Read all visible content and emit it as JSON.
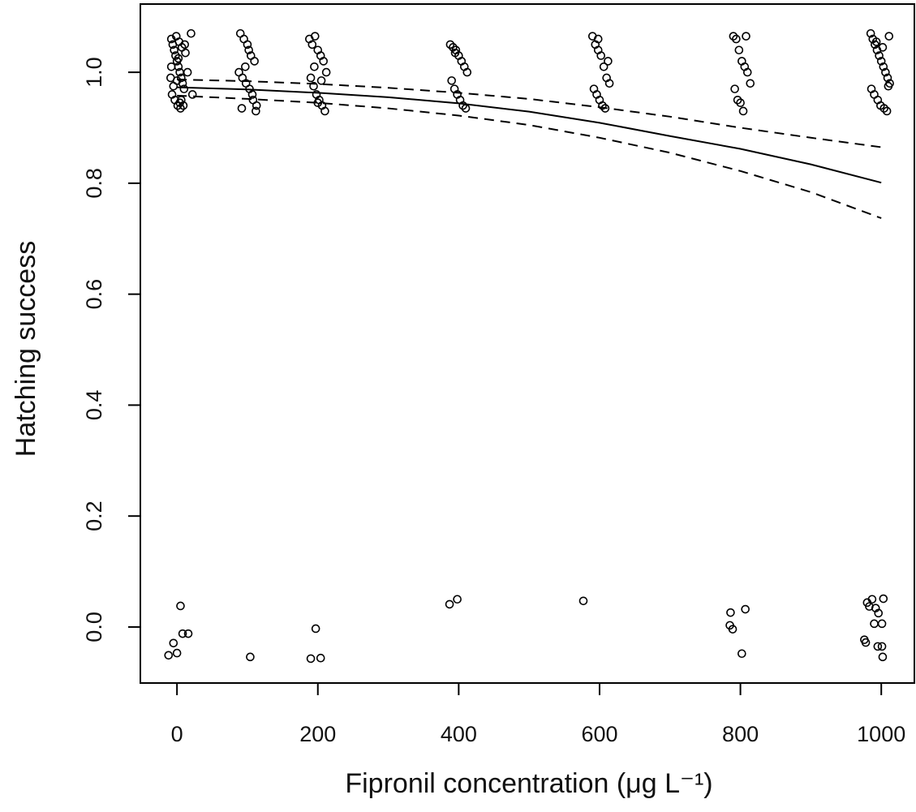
{
  "chart_data": {
    "type": "scatter",
    "xlabel": "Fipronil concentration (μg L⁻¹)",
    "ylabel": "Hatching success",
    "xlim": [
      -52,
      1047
    ],
    "ylim": [
      -0.101,
      1.123
    ],
    "xticks": [
      0,
      200,
      400,
      600,
      800,
      1000
    ],
    "yticks": [
      {
        "value": 0,
        "label": "0.0"
      },
      0.2,
      0.4,
      0.6,
      0.8,
      {
        "value": 1,
        "label": "1.0"
      }
    ],
    "color": "#000000",
    "series": [
      {
        "mark": "circle",
        "x": [
          -8,
          -6,
          -4,
          -2,
          0,
          2,
          4,
          6,
          8,
          10,
          -7,
          -3,
          1,
          5,
          9,
          -9,
          -1,
          3,
          7,
          12,
          15,
          20,
          22,
          -5,
          0,
          4,
          -8,
          2,
          6,
          11
        ],
        "values": [
          1.06,
          1.05,
          1.04,
          1.03,
          1.02,
          1.01,
          1.0,
          0.99,
          0.98,
          0.97,
          0.96,
          0.95,
          0.94,
          0.935,
          0.94,
          0.99,
          1.065,
          1.055,
          1.045,
          1.035,
          1.0,
          1.07,
          0.96,
          0.975,
          0.985,
          0.945,
          1.01,
          1.025,
          0.95,
          1.05
        ]
      },
      {
        "mark": "circle",
        "x": [
          90,
          95,
          100,
          105,
          110,
          88,
          93,
          98,
          103,
          108,
          113,
          92,
          97,
          102,
          107,
          112
        ],
        "values": [
          1.07,
          1.06,
          1.05,
          1.03,
          1.02,
          1.0,
          0.99,
          0.98,
          0.97,
          0.95,
          0.94,
          0.935,
          1.01,
          1.04,
          0.96,
          0.93
        ]
      },
      {
        "mark": "circle",
        "x": [
          188,
          192,
          196,
          200,
          204,
          208,
          212,
          190,
          194,
          198,
          202,
          206,
          210,
          195,
          205,
          200
        ],
        "values": [
          1.06,
          1.05,
          1.065,
          1.04,
          1.03,
          1.02,
          1.0,
          0.99,
          0.975,
          0.96,
          0.95,
          0.94,
          0.93,
          1.01,
          0.985,
          0.945
        ]
      },
      {
        "mark": "circle",
        "x": [
          388,
          392,
          396,
          400,
          404,
          408,
          412,
          390,
          394,
          398,
          402,
          406,
          410,
          395
        ],
        "values": [
          1.05,
          1.045,
          1.04,
          1.03,
          1.02,
          1.01,
          1.0,
          0.985,
          0.97,
          0.96,
          0.95,
          0.94,
          0.935,
          1.035
        ]
      },
      {
        "mark": "circle",
        "x": [
          590,
          594,
          598,
          602,
          606,
          610,
          614,
          592,
          596,
          600,
          604,
          608,
          612,
          598
        ],
        "values": [
          1.065,
          1.05,
          1.04,
          1.03,
          1.01,
          0.99,
          0.98,
          0.97,
          0.96,
          0.95,
          0.94,
          0.935,
          1.02,
          1.06
        ]
      },
      {
        "mark": "circle",
        "x": [
          790,
          794,
          798,
          802,
          806,
          810,
          814,
          792,
          796,
          800,
          804,
          808
        ],
        "values": [
          1.065,
          1.06,
          1.04,
          1.02,
          1.01,
          1.0,
          0.98,
          0.97,
          0.95,
          0.945,
          0.93,
          1.065
        ]
      },
      {
        "mark": "circle",
        "x": [
          985,
          988,
          991,
          994,
          997,
          1000,
          1003,
          1006,
          1009,
          1012,
          986,
          990,
          995,
          999,
          1004,
          1008,
          1011,
          993,
          1002,
          1010
        ],
        "values": [
          1.07,
          1.06,
          1.05,
          1.04,
          1.03,
          1.02,
          1.01,
          1.0,
          0.99,
          0.98,
          0.97,
          0.96,
          0.95,
          0.94,
          0.935,
          0.93,
          1.065,
          1.055,
          1.045,
          0.975
        ]
      },
      {
        "mark": "circle",
        "x": [
          -12,
          0,
          5,
          -5,
          8,
          16,
          104,
          190,
          204,
          197,
          387,
          398,
          577,
          785,
          789,
          786,
          807,
          802,
          978,
          976,
          980,
          987,
          992,
          996,
          1001,
          990,
          1003,
          995,
          1001,
          1002,
          983
        ],
        "values": [
          -0.051,
          -0.047,
          0.038,
          -0.029,
          -0.012,
          -0.012,
          -0.054,
          -0.057,
          -0.056,
          -0.003,
          0.041,
          0.05,
          0.047,
          0.003,
          -0.004,
          0.026,
          0.032,
          -0.048,
          -0.028,
          -0.023,
          0.044,
          0.05,
          0.034,
          0.025,
          0.006,
          0.006,
          0.051,
          -0.035,
          -0.035,
          -0.054,
          0.037
        ]
      },
      {
        "mark": "solid",
        "x": [
          0,
          100,
          200,
          300,
          400,
          500,
          600,
          700,
          800,
          900,
          1000
        ],
        "values": [
          0.973,
          0.969,
          0.963,
          0.955,
          0.944,
          0.929,
          0.909,
          0.885,
          0.862,
          0.834,
          0.801
        ]
      },
      {
        "mark": "dashed",
        "x": [
          0,
          100,
          200,
          300,
          400,
          500,
          600,
          700,
          800,
          900,
          1000
        ],
        "values": [
          0.987,
          0.984,
          0.979,
          0.972,
          0.963,
          0.952,
          0.937,
          0.92,
          0.9,
          0.882,
          0.865
        ]
      },
      {
        "mark": "dashed",
        "x": [
          0,
          100,
          200,
          300,
          400,
          500,
          600,
          700,
          800,
          900,
          1000
        ],
        "values": [
          0.958,
          0.952,
          0.945,
          0.935,
          0.922,
          0.905,
          0.882,
          0.855,
          0.822,
          0.784,
          0.737
        ]
      }
    ]
  }
}
